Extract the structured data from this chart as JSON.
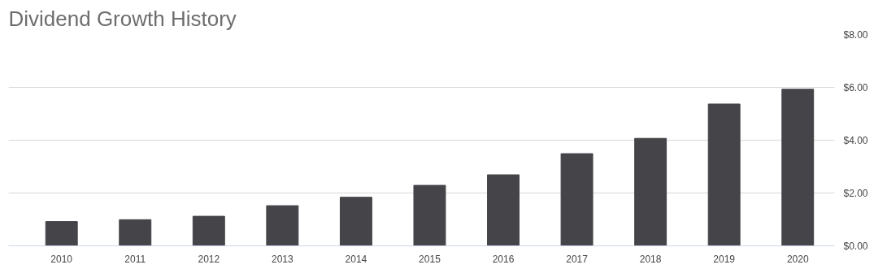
{
  "chart_data": {
    "type": "bar",
    "title": "Dividend Growth History",
    "categories": [
      "2010",
      "2011",
      "2012",
      "2013",
      "2014",
      "2015",
      "2016",
      "2017",
      "2018",
      "2019",
      "2020"
    ],
    "values": [
      0.92,
      0.99,
      1.12,
      1.52,
      1.84,
      2.29,
      2.69,
      3.49,
      4.07,
      5.37,
      5.93
    ],
    "color": "#444449",
    "ylim": [
      0,
      8
    ],
    "yticks": [
      {
        "value": 0,
        "label": "$0.00"
      },
      {
        "value": 2,
        "label": "$2.00"
      },
      {
        "value": 4,
        "label": "$4.00"
      },
      {
        "value": 6,
        "label": "$6.00"
      },
      {
        "value": 8,
        "label": "$8.00"
      }
    ],
    "grid": "y"
  }
}
